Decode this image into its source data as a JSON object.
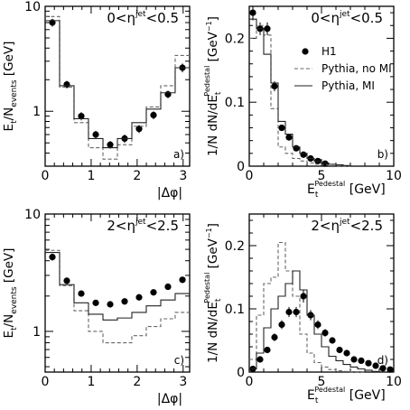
{
  "chart_data": [
    {
      "id": "a",
      "type": "line",
      "panel_tag": "a)",
      "region_label": {
        "prefix": "0<η",
        "sup": "jet",
        "suffix": "<0.5"
      },
      "ylabel": {
        "main": "E",
        "sub": "t",
        "mid": "/N",
        "sub2": "events",
        "unit": " [GeV]"
      },
      "xlabel": "|Δφ|",
      "xlim": [
        0,
        3.14159
      ],
      "ylim": [
        0.3,
        10
      ],
      "yscale": "log",
      "xticks": [
        0,
        1,
        2,
        3
      ],
      "yticks": [
        1,
        10
      ],
      "series": [
        {
          "name": "H1",
          "kind": "points",
          "x": [
            0.157,
            0.471,
            0.785,
            1.1,
            1.414,
            1.728,
            2.042,
            2.356,
            2.67,
            2.985
          ],
          "y": [
            7.0,
            1.8,
            0.9,
            0.6,
            0.48,
            0.55,
            0.68,
            0.92,
            1.45,
            2.6
          ],
          "err": [
            0.6,
            0.15,
            0.08,
            0.05,
            0.04,
            0.05,
            0.06,
            0.08,
            0.12,
            0.25
          ]
        },
        {
          "name": "Pythia, no MI",
          "kind": "dashed",
          "edges": [
            0,
            0.314,
            0.628,
            0.942,
            1.257,
            1.571,
            1.885,
            2.199,
            2.513,
            2.827,
            3.1416
          ],
          "y": [
            8.0,
            1.7,
            0.78,
            0.45,
            0.35,
            0.48,
            0.72,
            1.1,
            1.75,
            3.4
          ]
        },
        {
          "name": "Pythia, MI",
          "kind": "solid",
          "edges": [
            0,
            0.314,
            0.628,
            0.942,
            1.257,
            1.571,
            1.885,
            2.199,
            2.513,
            2.827,
            3.1416
          ],
          "y": [
            7.3,
            1.75,
            0.85,
            0.55,
            0.45,
            0.55,
            0.78,
            1.05,
            1.5,
            2.6
          ]
        }
      ]
    },
    {
      "id": "b",
      "type": "line",
      "panel_tag": "b)",
      "region_label": {
        "prefix": "0<η",
        "sup": "jet",
        "suffix": "<0.5"
      },
      "ylabel": {
        "main": "1/N dN/dE",
        "sub": "t",
        "sup": "Pedestal",
        "unit": " [GeV",
        "unitsup": "−1",
        "unitend": "]"
      },
      "xlabel": {
        "main": "E",
        "sub": "t",
        "sup": "Pedestal",
        "unit": "  [GeV]"
      },
      "xlim": [
        0,
        10
      ],
      "ylim": [
        0,
        0.25
      ],
      "yscale": "linear",
      "xticks": [
        0,
        5,
        10
      ],
      "yticks": [
        0,
        0.1,
        0.2
      ],
      "ytick_labels": [
        "0",
        "0.1",
        "0.2"
      ],
      "legend": {
        "placement": "top-right",
        "entries": [
          "H1",
          "Pythia, no MI",
          "Pythia, MI"
        ]
      },
      "series": [
        {
          "name": "H1",
          "kind": "points",
          "x": [
            0.25,
            0.75,
            1.25,
            1.75,
            2.25,
            2.75,
            3.25,
            3.75,
            4.25,
            4.75,
            5.25
          ],
          "y": [
            0.24,
            0.215,
            0.215,
            0.125,
            0.06,
            0.045,
            0.028,
            0.018,
            0.012,
            0.008,
            0.004
          ],
          "err": [
            0.012,
            0.01,
            0.01,
            0.008,
            0.005,
            0.004,
            0.003,
            0.003,
            0.002,
            0.002,
            0.001
          ]
        },
        {
          "name": "Pythia, no MI",
          "kind": "dashed",
          "edges": [
            0,
            0.5,
            1,
            1.5,
            2,
            2.5,
            3,
            3.5,
            4,
            4.5,
            5,
            5.5,
            6,
            6.5,
            7
          ],
          "y": [
            0.2,
            0.22,
            0.205,
            0.09,
            0.03,
            0.02,
            0.012,
            0.008,
            0.005,
            0.003,
            0.002,
            0.001,
            0.0005,
            0.0002
          ]
        },
        {
          "name": "Pythia, MI",
          "kind": "solid",
          "edges": [
            0,
            0.5,
            1,
            1.5,
            2,
            2.5,
            3,
            3.5,
            4,
            4.5,
            5,
            5.5,
            6,
            6.5,
            7
          ],
          "y": [
            0.23,
            0.215,
            0.175,
            0.13,
            0.07,
            0.05,
            0.03,
            0.02,
            0.012,
            0.008,
            0.005,
            0.003,
            0.002,
            0.001
          ]
        }
      ]
    },
    {
      "id": "c",
      "type": "line",
      "panel_tag": "c)",
      "region_label": {
        "prefix": "2<η",
        "sup": "jet",
        "suffix": "<2.5"
      },
      "ylabel": {
        "main": "E",
        "sub": "t",
        "mid": "/N",
        "sub2": "events",
        "unit": " [GeV]"
      },
      "xlabel": "|Δφ|",
      "xlim": [
        0,
        3.14159
      ],
      "ylim": [
        0.45,
        10
      ],
      "yscale": "log",
      "xticks": [
        0,
        1,
        2,
        3
      ],
      "yticks": [
        1,
        10
      ],
      "series": [
        {
          "name": "H1",
          "kind": "points",
          "x": [
            0.157,
            0.471,
            0.785,
            1.1,
            1.414,
            1.728,
            2.042,
            2.356,
            2.67,
            2.985
          ],
          "y": [
            4.3,
            2.7,
            2.1,
            1.75,
            1.7,
            1.8,
            1.95,
            2.15,
            2.4,
            2.75
          ],
          "err": [
            0.3,
            0.15,
            0.1,
            0.08,
            0.08,
            0.08,
            0.08,
            0.1,
            0.1,
            0.12
          ]
        },
        {
          "name": "Pythia, no MI",
          "kind": "dashed",
          "edges": [
            0,
            0.314,
            0.628,
            0.942,
            1.257,
            1.571,
            1.885,
            2.199,
            2.513,
            2.827,
            3.1416
          ],
          "y": [
            4.9,
            2.45,
            1.5,
            1.0,
            0.8,
            0.8,
            0.92,
            1.1,
            1.28,
            1.45
          ]
        },
        {
          "name": "Pythia, MI",
          "kind": "solid",
          "edges": [
            0,
            0.314,
            0.628,
            0.942,
            1.257,
            1.571,
            1.885,
            2.199,
            2.513,
            2.827,
            3.1416
          ],
          "y": [
            4.7,
            2.5,
            1.75,
            1.4,
            1.25,
            1.3,
            1.45,
            1.65,
            1.85,
            2.1
          ]
        }
      ]
    },
    {
      "id": "d",
      "type": "line",
      "panel_tag": "d)",
      "region_label": {
        "prefix": "2<η",
        "sup": "jet",
        "suffix": "<2.5"
      },
      "ylabel": {
        "main": "1/N dN/dE",
        "sub": "t",
        "sup": "Pedestal",
        "unit": " [GeV",
        "unitsup": "−1",
        "unitend": "]"
      },
      "xlabel": {
        "main": "E",
        "sub": "t",
        "sup": "Pedestal",
        "unit": "  [GeV]"
      },
      "xlim": [
        0,
        10
      ],
      "ylim": [
        0,
        0.25
      ],
      "yscale": "linear",
      "xticks": [
        0,
        5,
        10
      ],
      "yticks": [
        0,
        0.1,
        0.2
      ],
      "ytick_labels": [
        "0",
        "0.1",
        "0.2"
      ],
      "series": [
        {
          "name": "H1",
          "kind": "points",
          "x": [
            0.25,
            0.75,
            1.25,
            1.75,
            2.25,
            2.75,
            3.25,
            3.75,
            4.25,
            4.75,
            5.25,
            5.75,
            6.25,
            6.75,
            7.25,
            7.75,
            8.25,
            8.75,
            9.25,
            9.75
          ],
          "y": [
            0.005,
            0.02,
            0.035,
            0.055,
            0.075,
            0.095,
            0.095,
            0.12,
            0.09,
            0.075,
            0.062,
            0.05,
            0.035,
            0.03,
            0.02,
            0.018,
            0.014,
            0.01,
            0.006,
            0.004
          ],
          "err": [
            0.002,
            0.004,
            0.005,
            0.006,
            0.007,
            0.008,
            0.008,
            0.01,
            0.008,
            0.007,
            0.006,
            0.005,
            0.004,
            0.004,
            0.003,
            0.003,
            0.002,
            0.002,
            0.002,
            0.001
          ]
        },
        {
          "name": "Pythia, no MI",
          "kind": "dashed",
          "edges": [
            0,
            0.5,
            1,
            1.5,
            2,
            2.5,
            3,
            3.5,
            4,
            4.5,
            5,
            5.5,
            6,
            6.5,
            7,
            7.5,
            8
          ],
          "y": [
            0.02,
            0.09,
            0.14,
            0.15,
            0.205,
            0.16,
            0.12,
            0.06,
            0.03,
            0.015,
            0.008,
            0.004,
            0.002,
            0.001,
            0.0005,
            0.0002
          ]
        },
        {
          "name": "Pythia, MI",
          "kind": "solid",
          "edges": [
            0,
            0.5,
            1,
            1.5,
            2,
            2.5,
            3,
            3.5,
            4,
            4.5,
            5,
            5.5,
            6,
            6.5,
            7,
            7.5,
            8,
            8.5,
            9
          ],
          "y": [
            0.005,
            0.03,
            0.07,
            0.1,
            0.12,
            0.14,
            0.16,
            0.13,
            0.09,
            0.06,
            0.04,
            0.025,
            0.018,
            0.012,
            0.008,
            0.005,
            0.003,
            0.001
          ]
        }
      ]
    }
  ]
}
